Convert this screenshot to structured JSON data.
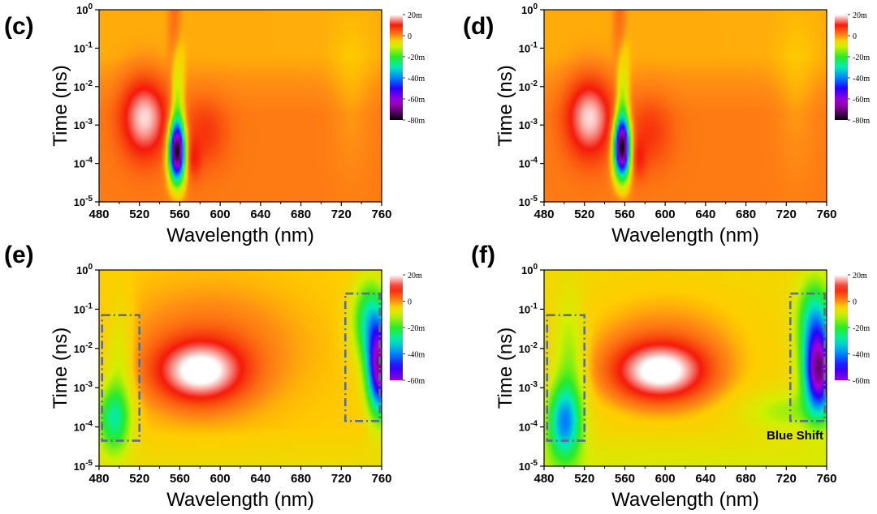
{
  "chart_data": [
    {
      "type": "heatmap",
      "panel_label": "(c)",
      "xlabel": "Wavelength (nm)",
      "ylabel": "Time (ns)",
      "xlim": [
        480,
        760
      ],
      "x_ticks": [
        "480",
        "520",
        "560",
        "600",
        "640",
        "680",
        "720",
        "760"
      ],
      "y_ticks": [
        "10-5",
        "10-4",
        "10-3",
        "10-2",
        "10-1",
        "100"
      ],
      "y_scale": "log",
      "colorbar_ticks": [
        "20m",
        "0",
        "-20m",
        "-40m",
        "-60m",
        "-80m"
      ],
      "colorbar_range": [
        -80,
        20
      ],
      "features": [
        {
          "kind": "positive peak",
          "wavelength": 525,
          "log_time": -3.0,
          "value": 20
        },
        {
          "kind": "negative peak",
          "wavelength": 557,
          "log_time": -3.7,
          "value": -80
        }
      ],
      "boxes": [],
      "annotation": ""
    },
    {
      "type": "heatmap",
      "panel_label": "(d)",
      "xlabel": "Wavelength (nm)",
      "ylabel": "Time (ns)",
      "xlim": [
        480,
        760
      ],
      "x_ticks": [
        "480",
        "520",
        "560",
        "600",
        "640",
        "680",
        "720",
        "760"
      ],
      "y_ticks": [
        "10-5",
        "10-4",
        "10-3",
        "10-2",
        "10-1",
        "100"
      ],
      "y_scale": "log",
      "colorbar_ticks": [
        "20m",
        "0",
        "-20m",
        "-40m",
        "-60m",
        "-80m"
      ],
      "colorbar_range": [
        -80,
        20
      ],
      "features": [
        {
          "kind": "positive peak",
          "wavelength": 525,
          "log_time": -3.0,
          "value": 20
        },
        {
          "kind": "negative peak",
          "wavelength": 557,
          "log_time": -3.6,
          "value": -80
        }
      ],
      "boxes": [],
      "annotation": ""
    },
    {
      "type": "heatmap",
      "panel_label": "(e)",
      "xlabel": "Wavelength (nm)",
      "ylabel": "Time (ns)",
      "xlim": [
        480,
        760
      ],
      "x_ticks": [
        "480",
        "520",
        "560",
        "600",
        "640",
        "680",
        "720",
        "760"
      ],
      "y_ticks": [
        "10-5",
        "10-4",
        "10-3",
        "10-2",
        "10-1",
        "100"
      ],
      "y_scale": "log",
      "colorbar_ticks": [
        "20m",
        "0",
        "-20m",
        "-40m",
        "-60m"
      ],
      "colorbar_range": [
        -60,
        20
      ],
      "features": [
        {
          "kind": "positive peak",
          "wavelength": 575,
          "log_time": -2.7,
          "value": 20
        },
        {
          "kind": "negative band",
          "wavelength": 495,
          "log_time": -3.7,
          "value": -20
        },
        {
          "kind": "negative band",
          "wavelength": 755,
          "log_time": -2.5,
          "value": -60
        }
      ],
      "boxes": [
        {
          "x0": 483,
          "x1": 520,
          "log_t0": -4.35,
          "log_t1": -1.15
        },
        {
          "x0": 724,
          "x1": 758,
          "log_t0": -3.85,
          "log_t1": -0.6
        }
      ],
      "annotation": ""
    },
    {
      "type": "heatmap",
      "panel_label": "(f)",
      "xlabel": "Wavelength (nm)",
      "ylabel": "Time (ns)",
      "xlim": [
        480,
        760
      ],
      "x_ticks": [
        "480",
        "520",
        "560",
        "600",
        "640",
        "680",
        "720",
        "760"
      ],
      "y_ticks": [
        "10-5",
        "10-4",
        "10-3",
        "10-2",
        "10-1",
        "100"
      ],
      "y_scale": "log",
      "colorbar_ticks": [
        "20m",
        "0",
        "-20m",
        "-40m",
        "-60m"
      ],
      "colorbar_range": [
        -60,
        20
      ],
      "features": [
        {
          "kind": "positive peak",
          "wavelength": 590,
          "log_time": -2.6,
          "value": 20
        },
        {
          "kind": "negative band",
          "wavelength": 500,
          "log_time": -3.8,
          "value": -35
        },
        {
          "kind": "negative band",
          "wavelength": 752,
          "log_time": -2.6,
          "value": -60
        }
      ],
      "boxes": [
        {
          "x0": 483,
          "x1": 520,
          "log_t0": -4.35,
          "log_t1": -1.15
        },
        {
          "x0": 724,
          "x1": 758,
          "log_t0": -3.85,
          "log_t1": -0.6
        }
      ],
      "annotation": "Blue Shift"
    }
  ]
}
